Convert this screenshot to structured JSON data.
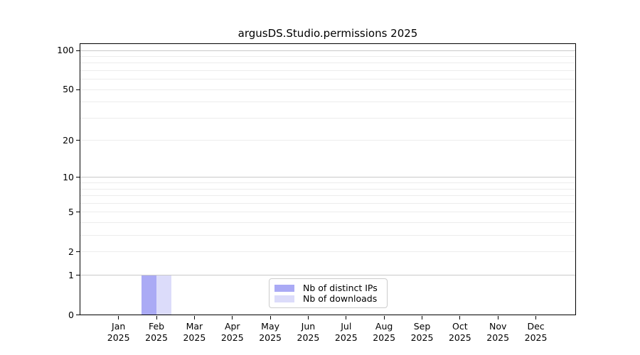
{
  "chart_data": {
    "type": "bar",
    "title": "argusDS.Studio.permissions 2025",
    "xlabel": "",
    "ylabel": "",
    "categories": [
      "Jan",
      "Feb",
      "Mar",
      "Apr",
      "May",
      "Jun",
      "Jul",
      "Aug",
      "Sep",
      "Oct",
      "Nov",
      "Dec"
    ],
    "x_tick_year": "2025",
    "series": [
      {
        "name": "Nb of distinct IPs",
        "color": "#aaaaf5",
        "values": [
          0,
          1,
          0,
          0,
          0,
          0,
          0,
          0,
          0,
          0,
          0,
          0
        ]
      },
      {
        "name": "Nb of downloads",
        "color": "#dcdcfa",
        "values": [
          0,
          1,
          0,
          0,
          0,
          0,
          0,
          0,
          0,
          0,
          0,
          0
        ]
      }
    ],
    "y_axis": {
      "scale": "log10(1+x)",
      "tick_values": [
        0,
        1,
        2,
        5,
        10,
        20,
        50,
        100
      ],
      "tick_labels": [
        "0",
        "1",
        "2",
        "5",
        "10",
        "20",
        "50",
        "100"
      ],
      "major_gridlines": [
        1,
        10,
        100
      ],
      "minor_gridlines": [
        2,
        3,
        4,
        5,
        6,
        7,
        8,
        9,
        20,
        30,
        40,
        50,
        60,
        70,
        80,
        90
      ],
      "ylim": [
        0,
        113
      ]
    },
    "grid": true,
    "legend": {
      "position": "bottom-center-inside",
      "entries": [
        "Nb of distinct IPs",
        "Nb of downloads"
      ]
    },
    "colors": {
      "major_grid": "#c9c9c9",
      "minor_grid": "#ececec",
      "axis": "#000000",
      "legend_border": "#cccccc",
      "background": "#ffffff"
    }
  }
}
